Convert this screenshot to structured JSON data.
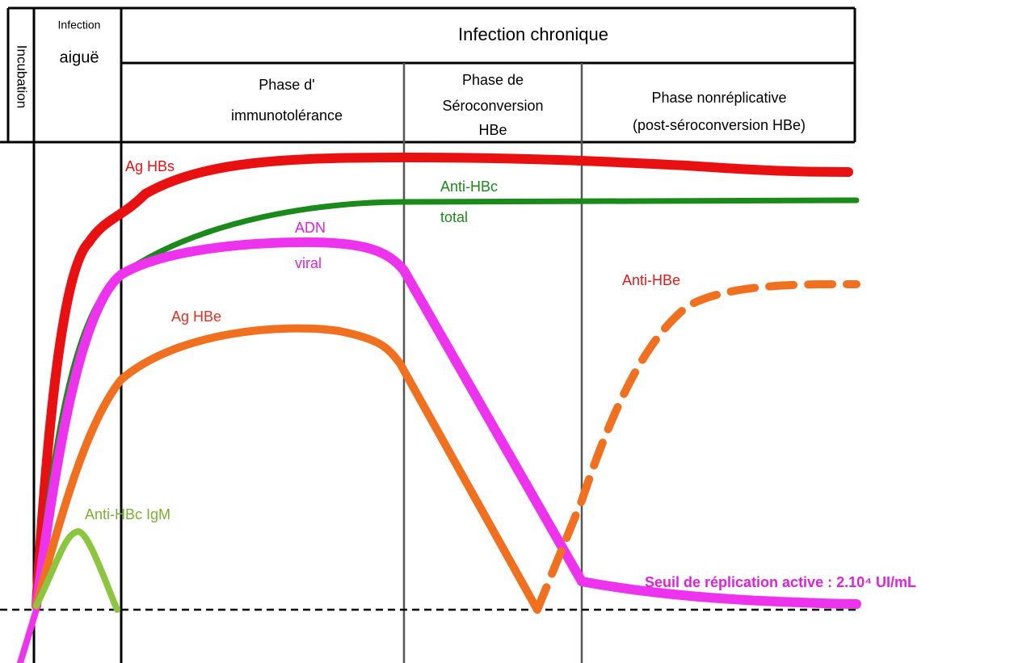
{
  "header": {
    "incubation": "Incubation",
    "acute": [
      "Infection",
      "aiguë"
    ],
    "chronic": "Infection chronique"
  },
  "phases": [
    {
      "lines": [
        "Phase d'",
        "immunotolérance"
      ]
    },
    {
      "lines": [
        "Phase de",
        "Séroconversion",
        "HBe"
      ]
    },
    {
      "lines": [
        "Phase nonréplicative",
        "(post-séroconversion HBe)"
      ]
    }
  ],
  "curves": {
    "ag_hbs": [
      "Ag HBs"
    ],
    "anti_hbc_total": [
      "Anti-HBc",
      "total"
    ],
    "adn_viral": [
      "ADN",
      "viral"
    ],
    "ag_hbe": [
      "Ag HBe"
    ],
    "anti_hbe": [
      "Anti-HBe"
    ],
    "anti_hbc_igm": [
      "Anti-HBc IgM"
    ],
    "threshold": [
      "Seuil de réplication active : 2.10⁴ UI/mL"
    ]
  }
}
